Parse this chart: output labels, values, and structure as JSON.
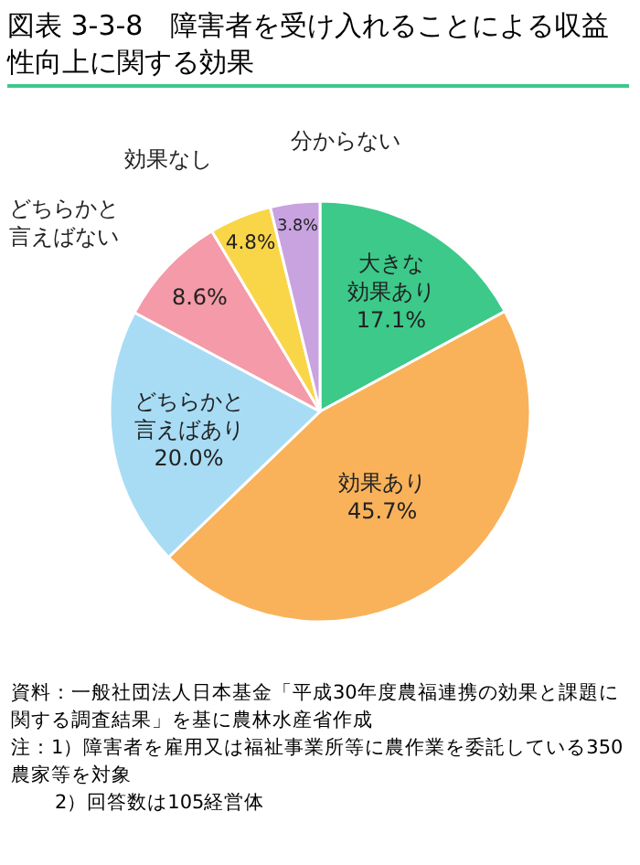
{
  "chart_data": {
    "type": "pie",
    "title": "図表 3-3-8　障害者を受け入れることによる収益性向上に関する効果",
    "categories": [
      "大きな効果あり",
      "効果あり",
      "どちらかと言えばあり",
      "どちらかと言えばない",
      "効果なし",
      "分からない"
    ],
    "values": [
      17.1,
      45.7,
      20.0,
      8.6,
      4.8,
      3.8
    ],
    "value_labels": [
      "17.1%",
      "45.7%",
      "20.0%",
      "8.6%",
      "4.8%",
      "3.8%"
    ],
    "colors": [
      "#3cc98a",
      "#f9b25a",
      "#a8dcf5",
      "#f49aa8",
      "#f9d548",
      "#c9a2e0"
    ],
    "legend": false,
    "annotations": [
      "資料：一般社団法人日本基金「平成30年度農福連携の効果と課題に関する調査結果」を基に農林水産省作成",
      "注：1）障害者を雇用又は福祉事業所等に農作業を委託している350農家等を対象",
      "2）回答数は105経営体"
    ]
  }
}
